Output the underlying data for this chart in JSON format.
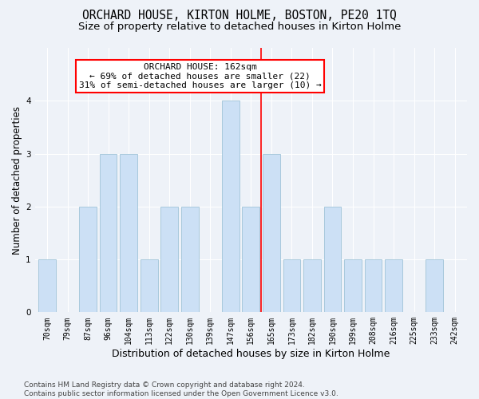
{
  "title": "ORCHARD HOUSE, KIRTON HOLME, BOSTON, PE20 1TQ",
  "subtitle": "Size of property relative to detached houses in Kirton Holme",
  "xlabel": "Distribution of detached houses by size in Kirton Holme",
  "ylabel": "Number of detached properties",
  "categories": [
    "70sqm",
    "79sqm",
    "87sqm",
    "96sqm",
    "104sqm",
    "113sqm",
    "122sqm",
    "130sqm",
    "139sqm",
    "147sqm",
    "156sqm",
    "165sqm",
    "173sqm",
    "182sqm",
    "190sqm",
    "199sqm",
    "208sqm",
    "216sqm",
    "225sqm",
    "233sqm",
    "242sqm"
  ],
  "values": [
    1,
    0,
    2,
    3,
    3,
    1,
    2,
    2,
    0,
    4,
    2,
    3,
    1,
    1,
    2,
    1,
    1,
    1,
    0,
    1,
    0
  ],
  "bar_color": "#cce0f5",
  "bar_edge_color": "#a0c4d8",
  "annotation_line": "ORCHARD HOUSE: 162sqm",
  "annotation_line2": "← 69% of detached houses are smaller (22)",
  "annotation_line3": "31% of semi-detached houses are larger (10) →",
  "annotation_box_color": "white",
  "annotation_box_edge": "red",
  "ylim": [
    0,
    5
  ],
  "yticks": [
    0,
    1,
    2,
    3,
    4
  ],
  "footer": "Contains HM Land Registry data © Crown copyright and database right 2024.\nContains public sector information licensed under the Open Government Licence v3.0.",
  "bg_color": "#eef2f8",
  "title_fontsize": 10.5,
  "subtitle_fontsize": 9.5,
  "xlabel_fontsize": 9,
  "ylabel_fontsize": 8.5,
  "tick_fontsize": 7,
  "annot_fontsize": 8,
  "footer_fontsize": 6.5,
  "ref_line_index": 11
}
